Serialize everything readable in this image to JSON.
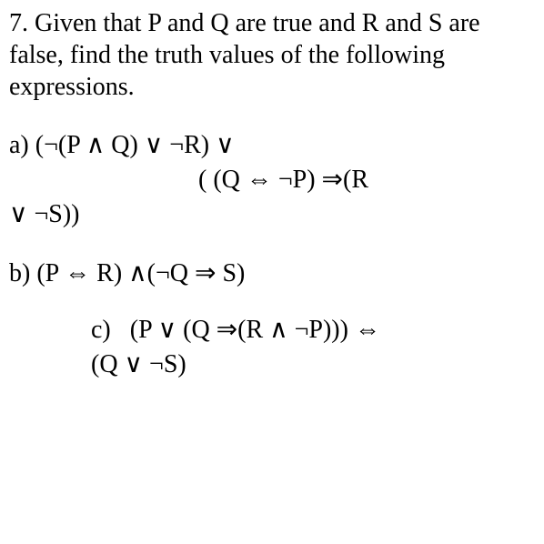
{
  "problem": {
    "number": "7.",
    "statement": "Given that P and Q are true and R and S are false, find the truth values of the following expressions."
  },
  "parts": {
    "a": {
      "label": "a)",
      "line1": "(¬(P ∧ Q) ∨ ¬R) ∨",
      "line2": "(  (Q ⇔ ¬P) ⇒(R",
      "line3": "∨ ¬S))"
    },
    "b": {
      "label": "b)",
      "expr": "(P ⇔ R) ∧(¬Q ⇒ S)"
    },
    "c": {
      "label": "c)",
      "line1": "(P ∨ (Q ⇒(R ∧ ¬P))) ⇔",
      "line2": "(Q ∨ ¬S)"
    }
  }
}
